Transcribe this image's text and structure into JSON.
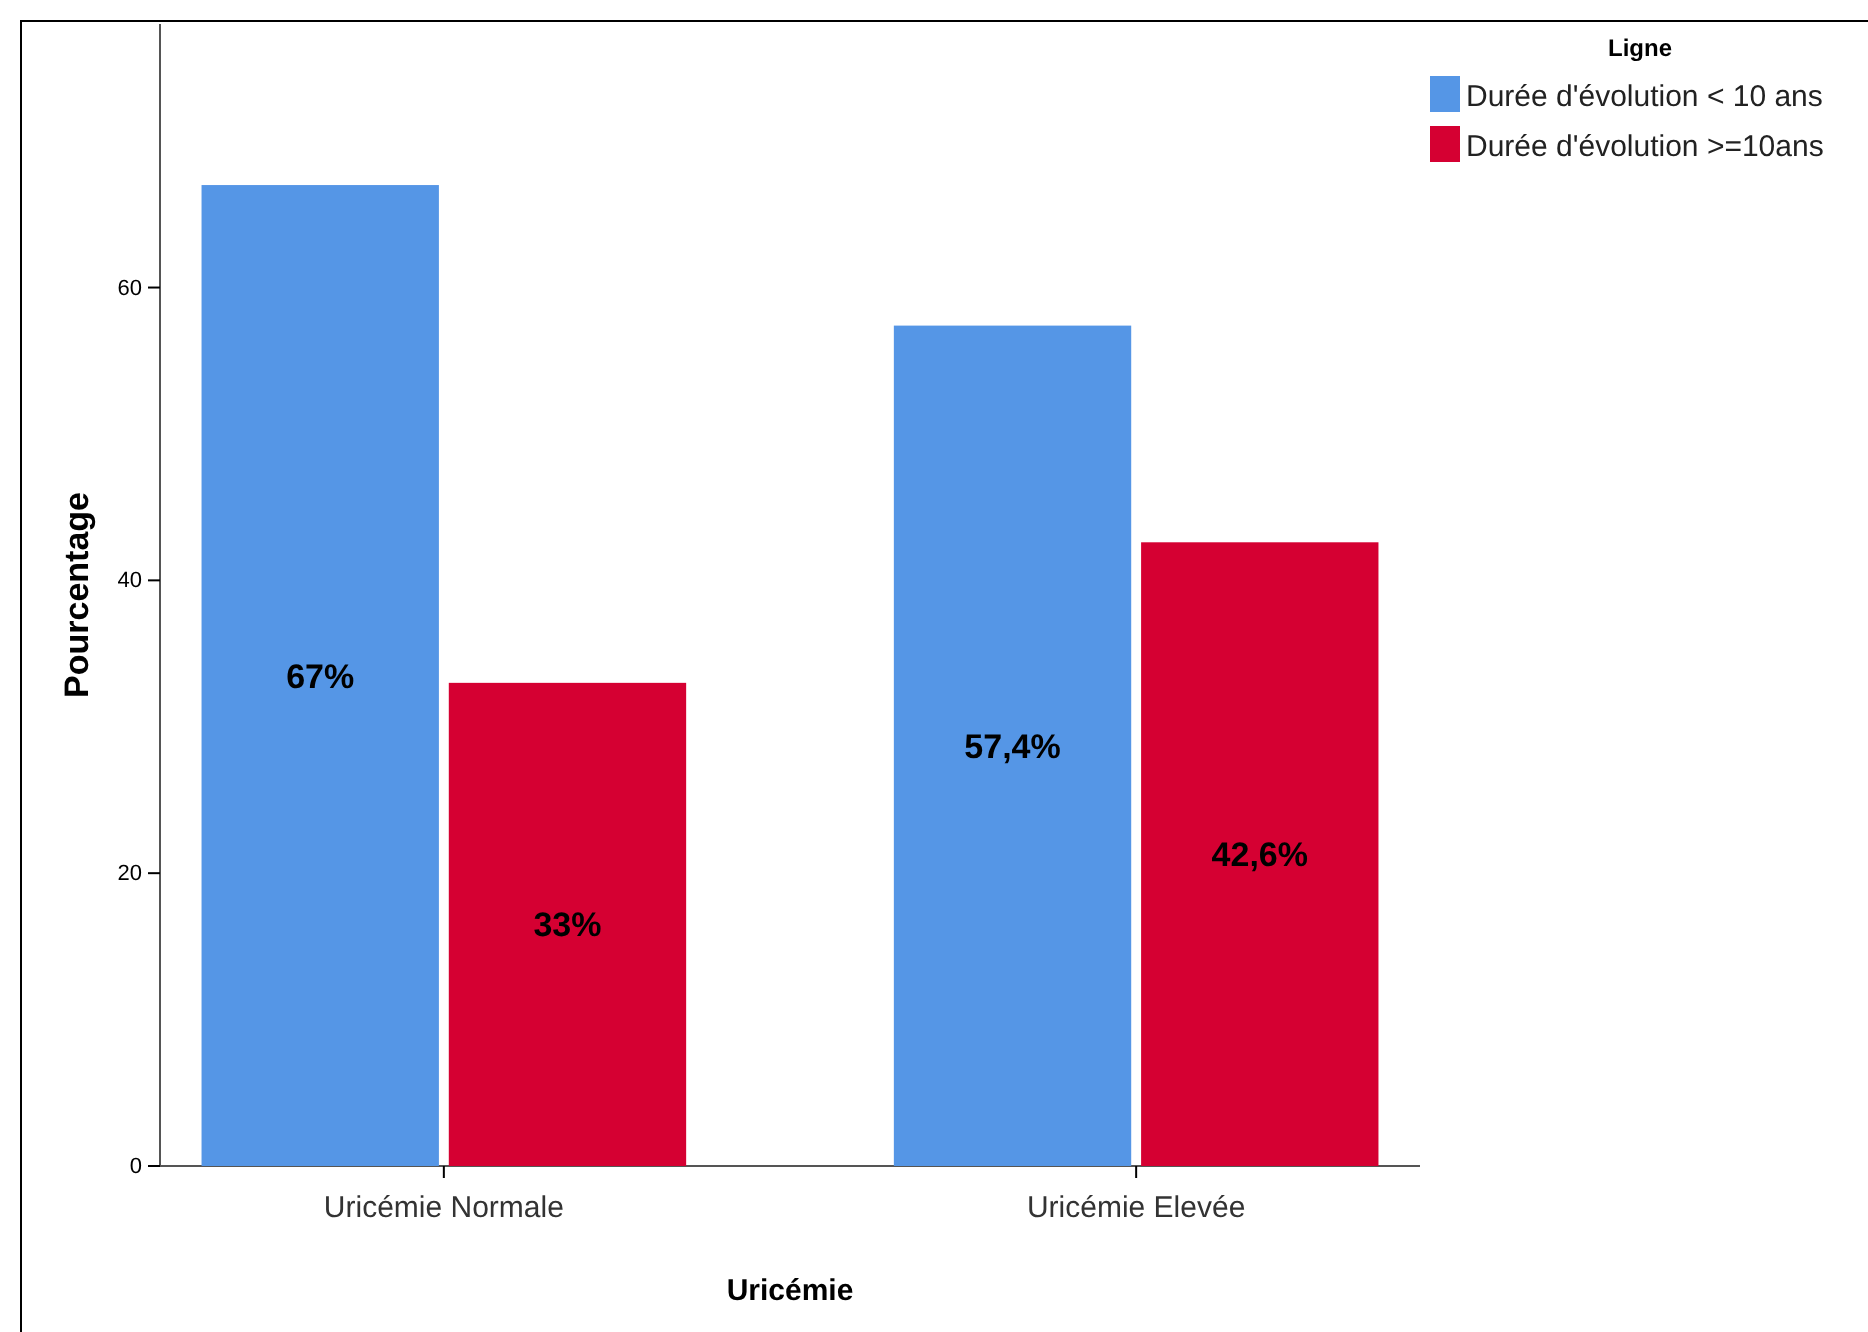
{
  "chart_data": {
    "type": "bar",
    "xlabel": "Uricémie",
    "ylabel": "Pourcentage",
    "legend_title": "Ligne",
    "legend": "top right",
    "categories": [
      "Uricémie Normale",
      "Uricémie Elevée"
    ],
    "series": [
      {
        "name": "Durée d'évolution < 10 ans",
        "color": "#5596e6",
        "values": [
          67,
          57.4
        ],
        "value_labels": [
          "67%",
          "57,4%"
        ]
      },
      {
        "name": "Durée d'évolution >=10ans",
        "color": "#d50032",
        "values": [
          33,
          42.6
        ],
        "value_labels": [
          "33%",
          "42,6%"
        ]
      }
    ],
    "ylim": [
      0,
      78
    ],
    "yticks": [
      0,
      20,
      40,
      60
    ],
    "grid": false
  }
}
